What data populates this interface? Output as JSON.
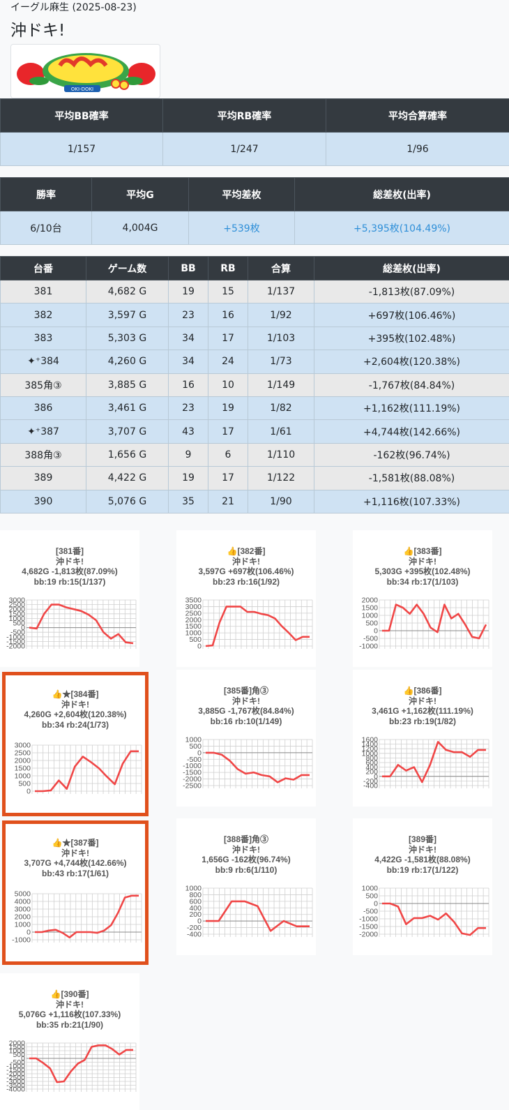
{
  "header": {
    "store": "イーグル麻生 (2025-08-23)",
    "title": "沖ドキ!",
    "logo_text": "OKI-DOKI"
  },
  "summary1": {
    "headers": [
      "平均BB確率",
      "平均RB確率",
      "平均合算確率"
    ],
    "values": [
      "1/157",
      "1/247",
      "1/96"
    ]
  },
  "summary2": {
    "headers": [
      "勝率",
      "平均G",
      "平均差枚",
      "総差枚(出率)"
    ],
    "values": [
      "6/10台",
      "4,004G",
      "+539枚",
      "+5,395枚(104.49%)"
    ]
  },
  "machines": {
    "headers": [
      "台番",
      "ゲーム数",
      "BB",
      "RB",
      "合算",
      "総差枚(出率)"
    ],
    "rows": [
      {
        "no": "381",
        "games": "4,682 G",
        "bb": "19",
        "rb": "15",
        "total": "1/137",
        "diff": "-1,813枚(87.09%)"
      },
      {
        "no": "382",
        "games": "3,597 G",
        "bb": "23",
        "rb": "16",
        "total": "1/92",
        "diff": "+697枚(106.46%)"
      },
      {
        "no": "383",
        "games": "5,303 G",
        "bb": "34",
        "rb": "17",
        "total": "1/103",
        "diff": "+395枚(102.48%)"
      },
      {
        "no": "384",
        "games": "4,260 G",
        "bb": "34",
        "rb": "24",
        "total": "1/73",
        "diff": "+2,604枚(120.38%)"
      },
      {
        "no": "385角③",
        "games": "3,885 G",
        "bb": "16",
        "rb": "10",
        "total": "1/149",
        "diff": "-1,767枚(84.84%)"
      },
      {
        "no": "386",
        "games": "3,461 G",
        "bb": "23",
        "rb": "19",
        "total": "1/82",
        "diff": "+1,162枚(111.19%)"
      },
      {
        "no": "387",
        "games": "3,707 G",
        "bb": "43",
        "rb": "17",
        "total": "1/61",
        "diff": "+4,744枚(142.66%)"
      },
      {
        "no": "388角③",
        "games": "1,656 G",
        "bb": "9",
        "rb": "6",
        "total": "1/110",
        "diff": "-162枚(96.74%)"
      },
      {
        "no": "389",
        "games": "4,422 G",
        "bb": "19",
        "rb": "17",
        "total": "1/122",
        "diff": "-1,581枚(88.08%)"
      },
      {
        "no": "390",
        "games": "5,076 G",
        "bb": "35",
        "rb": "21",
        "total": "1/90",
        "diff": "+1,116枚(107.33%)"
      }
    ]
  },
  "chart_data": [
    {
      "type": "line",
      "label": "[381番]",
      "machine": "沖ドキ!",
      "stats": "4,682G -1,813枚(87.09%)",
      "bbrb": "bb:19 rb:15(1/137)",
      "ylim": [
        -2000,
        3000
      ],
      "ticks": [
        "3000",
        "2500",
        "2000",
        "1500",
        "1000",
        "500",
        "0",
        "-500",
        "-1000",
        "-1500",
        "-2000"
      ],
      "values": [
        0,
        -100,
        1500,
        2500,
        2500,
        2200,
        2000,
        1800,
        1400,
        800,
        -500,
        -1200,
        -700,
        -1600,
        -1700
      ]
    },
    {
      "type": "line",
      "label": "👍[382番]",
      "machine": "沖ドキ!",
      "stats": "3,597G +697枚(106.46%)",
      "bbrb": "bb:23 rb:16(1/92)",
      "ylim": [
        0,
        3500
      ],
      "ticks": [
        "3500",
        "3000",
        "2500",
        "2000",
        "1500",
        "1000",
        "500",
        "0"
      ],
      "values": [
        0,
        50,
        1800,
        3000,
        3000,
        3000,
        2600,
        2600,
        2450,
        2350,
        2100,
        1500,
        1000,
        450,
        700,
        700
      ]
    },
    {
      "type": "line",
      "label": "👍[383番]",
      "machine": "沖ドキ!",
      "stats": "5,303G +395枚(102.48%)",
      "bbrb": "bb:34 rb:17(1/103)",
      "ylim": [
        -1000,
        2000
      ],
      "ticks": [
        "2000",
        "1500",
        "1000",
        "500",
        "0",
        "-500",
        "-1000"
      ],
      "values": [
        0,
        0,
        1700,
        1500,
        1100,
        1700,
        1100,
        200,
        -100,
        1700,
        800,
        1100,
        400,
        -400,
        -500,
        400
      ]
    },
    {
      "type": "line",
      "label": "👍★[384番]",
      "machine": "沖ドキ!",
      "stats": "4,260G +2,604枚(120.38%)",
      "bbrb": "bb:34 rb:24(1/73)",
      "ylim": [
        0,
        3000
      ],
      "ticks": [
        "3000",
        "2500",
        "2000",
        "1500",
        "1000",
        "500",
        "0"
      ],
      "values": [
        0,
        0,
        50,
        700,
        150,
        1600,
        2250,
        1900,
        1500,
        950,
        450,
        1800,
        2600,
        2600
      ]
    },
    {
      "type": "line",
      "label": "[385番]角③",
      "machine": "沖ドキ!",
      "stats": "3,885G -1,767枚(84.84%)",
      "bbrb": "bb:16 rb:10(1/149)",
      "ylim": [
        -2500,
        1000
      ],
      "ticks": [
        "1000",
        "500",
        "0",
        "-500",
        "-1000",
        "-1500",
        "-2000",
        "-2500"
      ],
      "values": [
        0,
        0,
        -150,
        -600,
        -1250,
        -1600,
        -1500,
        -1700,
        -1800,
        -2250,
        -1950,
        -2050,
        -1700,
        -1700
      ]
    },
    {
      "type": "line",
      "label": "👍[386番]",
      "machine": "沖ドキ!",
      "stats": "3,461G +1,162枚(111.19%)",
      "bbrb": "bb:23 rb:19(1/82)",
      "ylim": [
        -400,
        1600
      ],
      "ticks": [
        "1600",
        "1400",
        "1200",
        "1000",
        "800",
        "600",
        "400",
        "200",
        "0",
        "-200",
        "-400"
      ],
      "values": [
        0,
        0,
        500,
        250,
        400,
        -250,
        500,
        1500,
        1150,
        1050,
        1050,
        850,
        1150,
        1150
      ]
    },
    {
      "type": "line",
      "label": "👍★[387番]",
      "machine": "沖ドキ!",
      "stats": "3,707G +4,744枚(142.66%)",
      "bbrb": "bb:43 rb:17(1/61)",
      "ylim": [
        -1000,
        5000
      ],
      "ticks": [
        "5000",
        "4000",
        "3000",
        "2000",
        "1000",
        "0",
        "-1000"
      ],
      "values": [
        0,
        0,
        200,
        300,
        -100,
        -700,
        0,
        0,
        0,
        -100,
        200,
        900,
        2500,
        4500,
        4750,
        4750
      ]
    },
    {
      "type": "line",
      "label": "[388番]角③",
      "machine": "沖ドキ!",
      "stats": "1,656G -162枚(96.74%)",
      "bbrb": "bb:9 rb:6(1/110)",
      "ylim": [
        -400,
        1000
      ],
      "ticks": [
        "1000",
        "800",
        "600",
        "400",
        "200",
        "0",
        "-200",
        "-400"
      ],
      "values": [
        0,
        0,
        600,
        600,
        450,
        -300,
        0,
        -160,
        -160
      ]
    },
    {
      "type": "line",
      "label": "[389番]",
      "machine": "沖ドキ!",
      "stats": "4,422G -1,581枚(88.08%)",
      "bbrb": "bb:19 rb:17(1/122)",
      "ylim": [
        -2000,
        1000
      ],
      "ticks": [
        "1000",
        "500",
        "0",
        "-500",
        "-1000",
        "-1500",
        "-2000"
      ],
      "values": [
        0,
        0,
        -200,
        -1350,
        -950,
        -950,
        -800,
        -1050,
        -650,
        -1200,
        -1950,
        -2050,
        -1600,
        -1600
      ]
    },
    {
      "type": "line",
      "label": "👍[390番]",
      "machine": "沖ドキ!",
      "stats": "5,076G +1,116枚(107.33%)",
      "bbrb": "bb:35 rb:21(1/90)",
      "ylim": [
        -4000,
        2000
      ],
      "ticks": [
        "2000",
        "1500",
        "1000",
        "500",
        "0",
        "-500",
        "-1000",
        "-1500",
        "-2000",
        "-2500",
        "-3000",
        "-3500",
        "-4000"
      ],
      "values": [
        0,
        0,
        -600,
        -1300,
        -3100,
        -3000,
        -1700,
        -700,
        -200,
        1500,
        1700,
        1700,
        1200,
        500,
        1100,
        1100
      ]
    }
  ]
}
